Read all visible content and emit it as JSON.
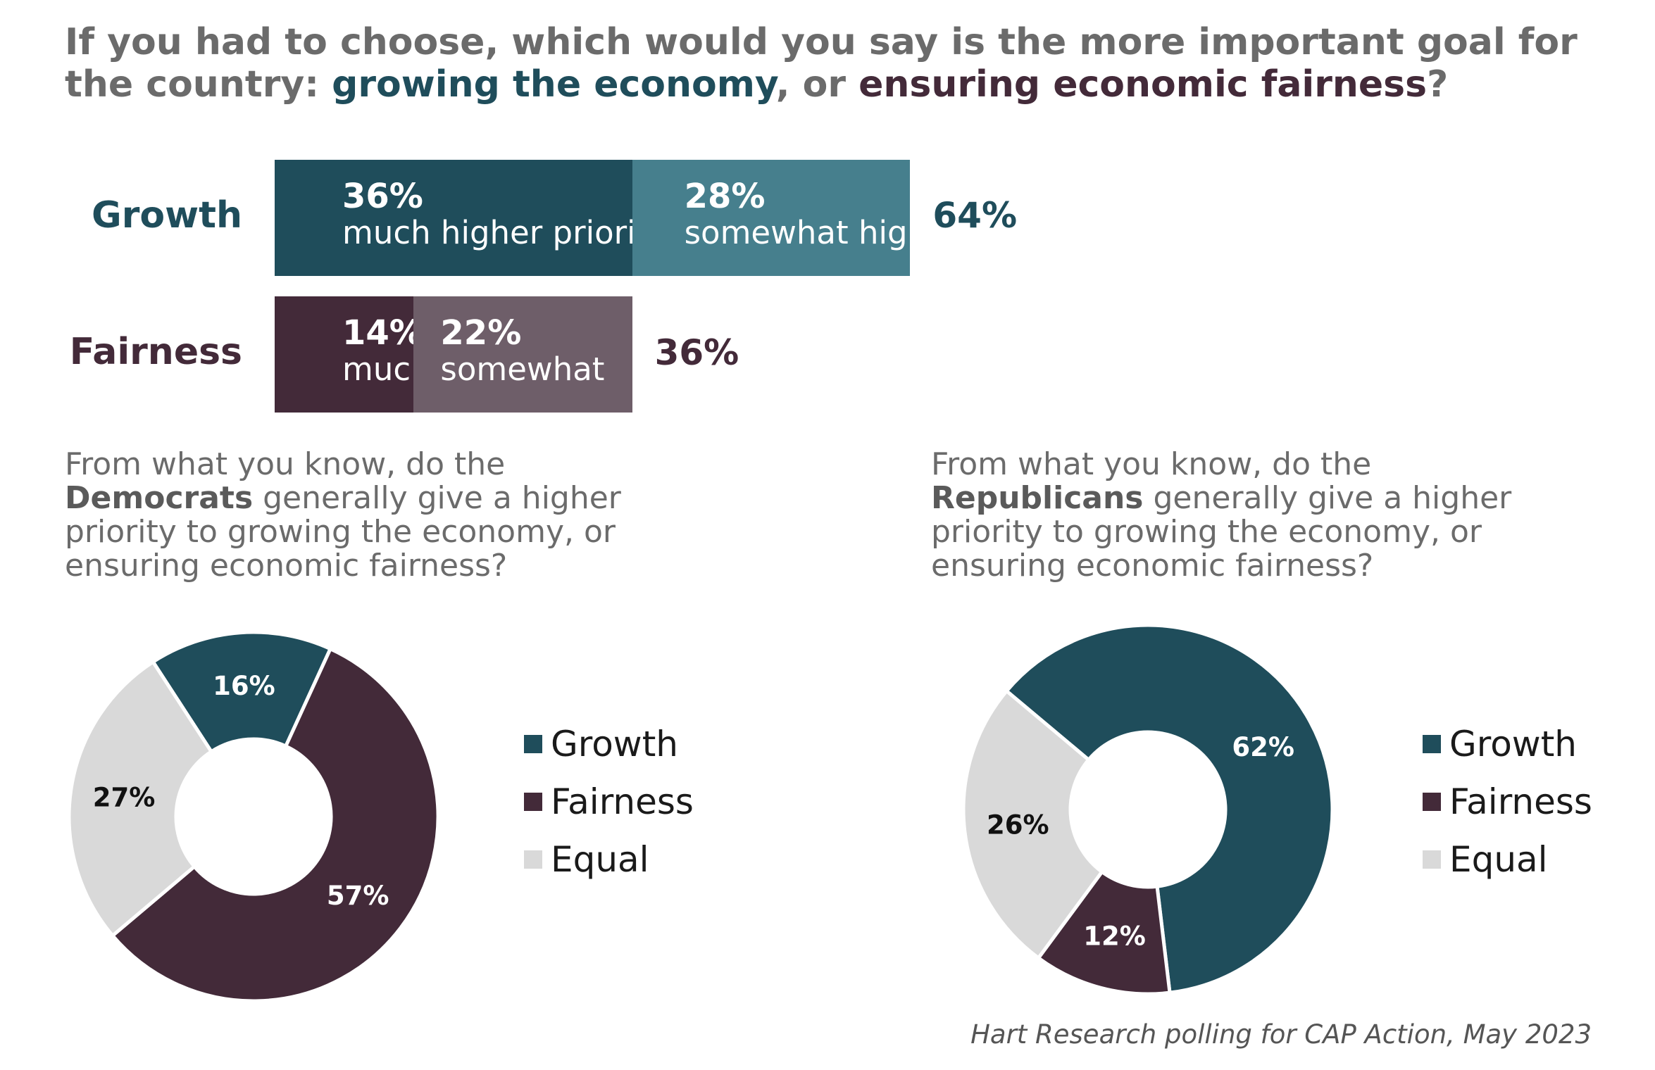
{
  "title": {
    "prefix": "If you had to choose, which would you say is the more important goal for the country: ",
    "growth": "growing the economy",
    "middle": ", or ",
    "fairness": "ensuring economic fairness",
    "suffix": "?"
  },
  "colors": {
    "growth_dark": "#1f4d5b",
    "growth_light": "#467f8d",
    "fairness_dark": "#432a39",
    "fairness_light": "#6e5e69",
    "equal": "#d9d9d9",
    "title_gray": "#6b6b6b"
  },
  "source": "Hart Research polling for CAP Action, May 2023",
  "chart_data": [
    {
      "type": "bar",
      "orientation": "horizontal",
      "stacked": true,
      "categories": [
        "Growth",
        "Fairness"
      ],
      "series": [
        {
          "values": [
            36,
            14
          ],
          "labels": [
            "36%",
            "14%"
          ],
          "descriptions": [
            "much higher priority",
            "much higher"
          ]
        },
        {
          "values": [
            28,
            22
          ],
          "labels": [
            "28%",
            "22%"
          ],
          "descriptions": [
            "somewhat higher",
            "somewhat"
          ]
        }
      ],
      "totals": [
        "64%",
        "36%"
      ]
    },
    {
      "type": "pie",
      "donut": true,
      "question": {
        "line1": "From what you know, do the",
        "party": "Democrats",
        "line2_rest": " generally give a higher",
        "line3": "priority to growing the economy, or",
        "line4": "ensuring economic fairness?"
      },
      "slices": [
        {
          "name": "Growth",
          "value": 16,
          "label": "16%"
        },
        {
          "name": "Fairness",
          "value": 57,
          "label": "57%"
        },
        {
          "name": "Equal",
          "value": 27,
          "label": "27%"
        }
      ],
      "legend": [
        "Growth",
        "Fairness",
        "Equal"
      ],
      "legend_position": "right"
    },
    {
      "type": "pie",
      "donut": true,
      "question": {
        "line1": "From what you know, do the",
        "party": "Republicans",
        "line2_rest": " generally give a higher",
        "line3": "priority to growing the economy, or",
        "line4": "ensuring economic fairness?"
      },
      "slices": [
        {
          "name": "Growth",
          "value": 62,
          "label": "62%"
        },
        {
          "name": "Fairness",
          "value": 12,
          "label": "12%"
        },
        {
          "name": "Equal",
          "value": 26,
          "label": "26%"
        }
      ],
      "legend": [
        "Growth",
        "Fairness",
        "Equal"
      ],
      "legend_position": "right"
    }
  ]
}
